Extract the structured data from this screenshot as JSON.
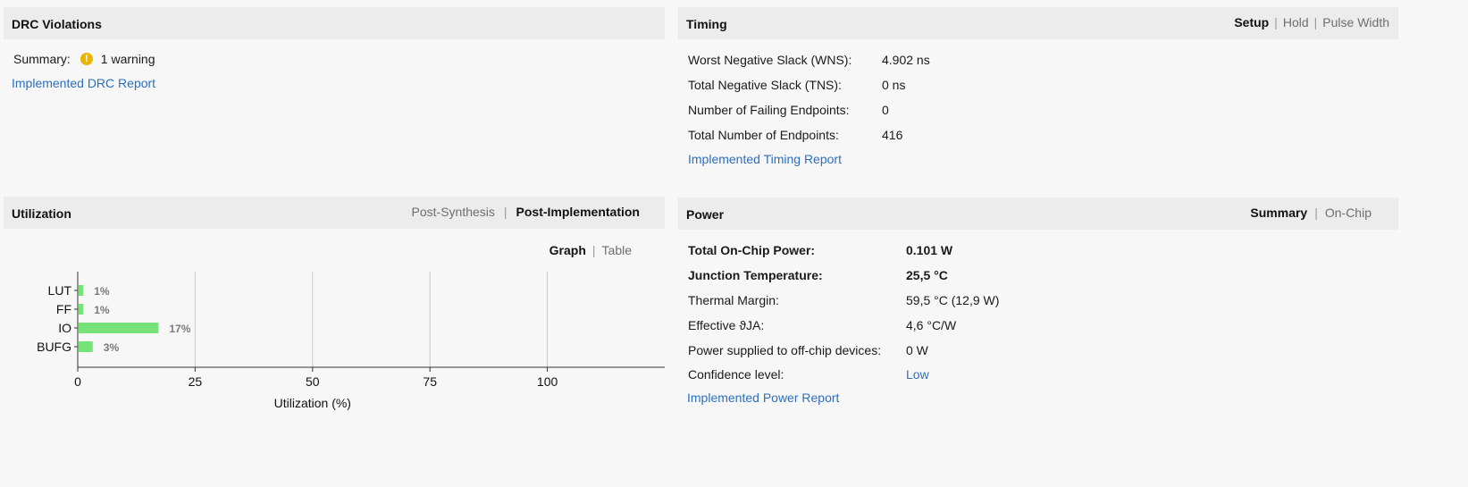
{
  "drc": {
    "title": "DRC Violations",
    "summary_label": "Summary:",
    "summary_value": "1 warning",
    "report_link": "Implemented DRC Report"
  },
  "timing": {
    "title": "Timing",
    "tabs": [
      "Setup",
      "Hold",
      "Pulse Width"
    ],
    "active_tab": "Setup",
    "rows": [
      {
        "label": "Worst Negative Slack (WNS):",
        "value": "4.902 ns"
      },
      {
        "label": "Total Negative Slack (TNS):",
        "value": "0 ns"
      },
      {
        "label": "Number of Failing Endpoints:",
        "value": "0"
      },
      {
        "label": "Total Number of Endpoints:",
        "value": "416"
      }
    ],
    "report_link": "Implemented Timing Report"
  },
  "utilization": {
    "title": "Utilization",
    "tabs": [
      "Post-Synthesis",
      "Post-Implementation"
    ],
    "active_tab": "Post-Implementation",
    "view_tabs": [
      "Graph",
      "Table"
    ],
    "active_view": "Graph"
  },
  "power": {
    "title": "Power",
    "tabs": [
      "Summary",
      "On-Chip"
    ],
    "active_tab": "Summary",
    "rows": [
      {
        "label": "Total On-Chip Power:",
        "value": "0.101 W"
      },
      {
        "label": "Junction Temperature:",
        "value": "25,5 °C"
      },
      {
        "label": "Thermal Margin:",
        "value": "59,5 °C (12,9 W)"
      },
      {
        "label": "Effective ϑJA:",
        "value": "4,6 °C/W"
      },
      {
        "label": "Power supplied to off-chip devices:",
        "value": "0 W"
      },
      {
        "label": "Confidence level:",
        "value": "Low"
      }
    ],
    "report_link": "Implemented Power Report"
  },
  "chart_data": {
    "type": "bar",
    "orientation": "horizontal",
    "categories": [
      "LUT",
      "FF",
      "IO",
      "BUFG"
    ],
    "values": [
      1,
      1,
      17,
      3
    ],
    "data_labels": [
      "1%",
      "1%",
      "17%",
      "3%"
    ],
    "xlabel": "Utilization (%)",
    "xlim": [
      0,
      125
    ],
    "xticks": [
      0,
      25,
      50,
      75,
      100
    ],
    "grid": true,
    "bar_color": "#77e277"
  }
}
